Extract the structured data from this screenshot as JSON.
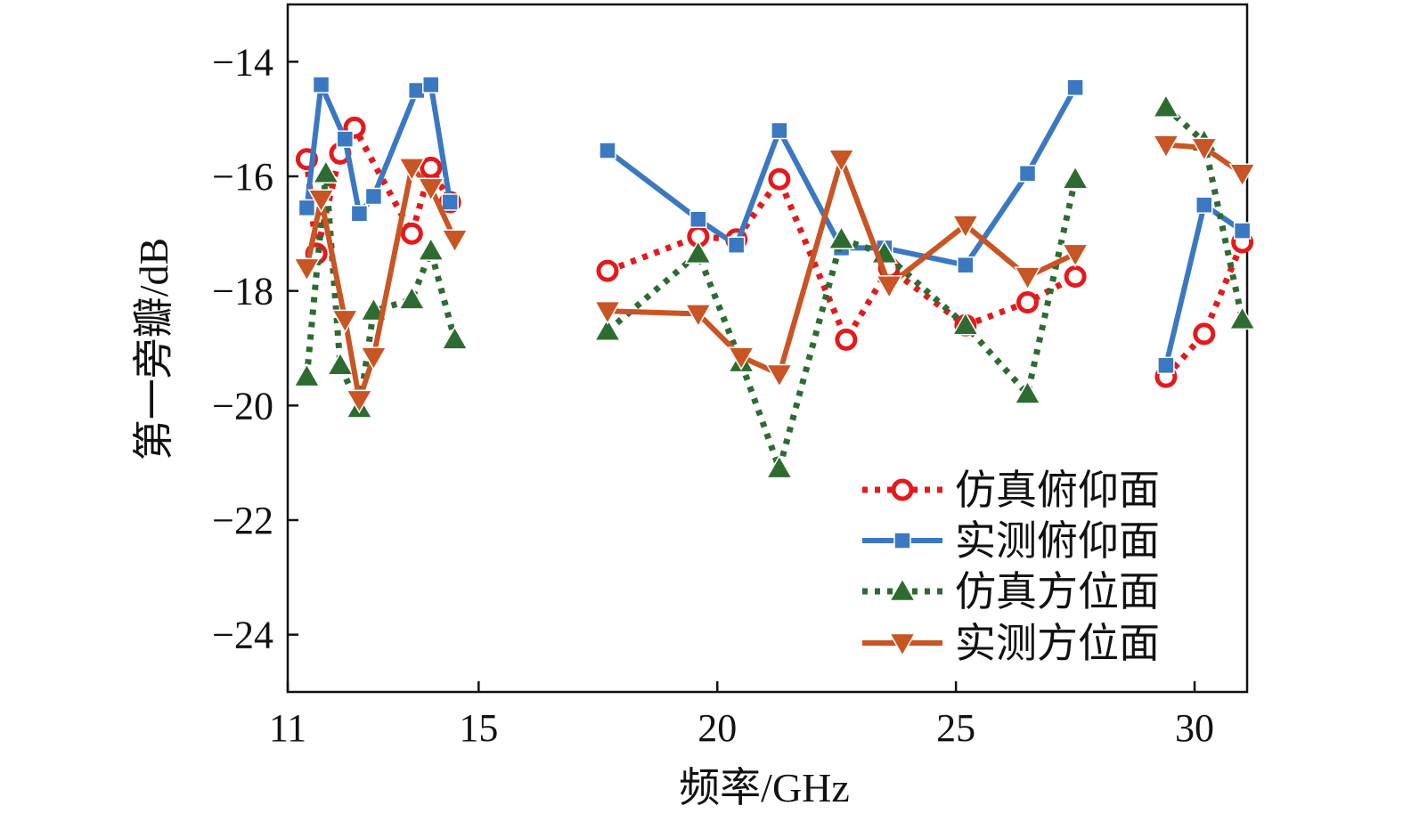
{
  "chart_data": {
    "type": "line",
    "xlabel": "频率/GHz",
    "ylabel": "第一旁瓣/dB",
    "xlim": [
      11,
      31.1
    ],
    "ylim": [
      -25.0,
      -13.0
    ],
    "xticks": [
      11,
      15,
      20,
      25,
      30
    ],
    "yticks": [
      -24,
      -22,
      -20,
      -18,
      -16,
      -14
    ],
    "ytick_labels": [
      "−24",
      "−22",
      "−20",
      "−18",
      "−16",
      "−14"
    ],
    "legend_position": "bottom-right",
    "grid": false,
    "series": [
      {
        "name": "仿真俯仰面",
        "color": "#e31a1c",
        "line_style": "dotted",
        "marker": "circle-open",
        "segments": [
          [
            [
              11.4,
              -15.7
            ],
            [
              11.6,
              -17.35
            ],
            [
              12.1,
              -15.6
            ],
            [
              12.4,
              -15.15
            ],
            [
              13.6,
              -17.0
            ],
            [
              14.0,
              -15.85
            ],
            [
              14.4,
              -16.45
            ]
          ],
          [
            [
              17.7,
              -17.65
            ],
            [
              19.6,
              -17.05
            ],
            [
              20.4,
              -17.1
            ],
            [
              21.3,
              -16.05
            ],
            [
              22.7,
              -18.85
            ],
            [
              23.6,
              -17.6
            ],
            [
              25.2,
              -18.6
            ],
            [
              26.5,
              -18.2
            ],
            [
              27.5,
              -17.75
            ]
          ],
          [
            [
              29.4,
              -19.5
            ],
            [
              30.2,
              -18.75
            ],
            [
              31.0,
              -17.15
            ]
          ]
        ]
      },
      {
        "name": "实测俯仰面",
        "color": "#3b78c2",
        "line_style": "solid",
        "marker": "square",
        "segments": [
          [
            [
              11.4,
              -16.55
            ],
            [
              11.7,
              -14.4
            ],
            [
              12.2,
              -15.35
            ],
            [
              12.5,
              -16.65
            ],
            [
              12.8,
              -16.35
            ],
            [
              13.7,
              -14.5
            ],
            [
              14.0,
              -14.4
            ],
            [
              14.4,
              -16.45
            ]
          ],
          [
            [
              17.7,
              -15.55
            ],
            [
              19.6,
              -16.75
            ],
            [
              20.4,
              -17.2
            ],
            [
              21.3,
              -15.2
            ],
            [
              22.6,
              -17.25
            ],
            [
              23.5,
              -17.25
            ],
            [
              25.2,
              -17.55
            ],
            [
              26.5,
              -15.95
            ],
            [
              27.5,
              -14.45
            ]
          ],
          [
            [
              29.4,
              -19.3
            ],
            [
              30.2,
              -16.5
            ],
            [
              31.0,
              -16.95
            ]
          ]
        ]
      },
      {
        "name": "仿真方位面",
        "color": "#2e6b30",
        "line_style": "dotted",
        "marker": "triangle-up",
        "segments": [
          [
            [
              11.4,
              -19.5
            ],
            [
              11.8,
              -15.95
            ],
            [
              12.1,
              -19.3
            ],
            [
              12.5,
              -20.05
            ],
            [
              12.8,
              -18.35
            ],
            [
              13.6,
              -18.15
            ],
            [
              14.0,
              -17.3
            ],
            [
              14.5,
              -18.85
            ]
          ],
          [
            [
              17.7,
              -18.7
            ],
            [
              19.6,
              -17.35
            ],
            [
              20.5,
              -19.25
            ],
            [
              21.3,
              -21.1
            ],
            [
              22.6,
              -17.1
            ],
            [
              23.5,
              -17.35
            ],
            [
              25.2,
              -18.6
            ],
            [
              26.5,
              -19.8
            ],
            [
              27.5,
              -16.05
            ]
          ],
          [
            [
              29.4,
              -14.8
            ],
            [
              30.2,
              -15.4
            ],
            [
              31.0,
              -18.5
            ]
          ]
        ]
      },
      {
        "name": "实测方位面",
        "color": "#c95424",
        "line_style": "solid",
        "marker": "triangle-down",
        "segments": [
          [
            [
              11.4,
              -17.6
            ],
            [
              11.7,
              -16.4
            ],
            [
              12.2,
              -18.5
            ],
            [
              12.5,
              -19.9
            ],
            [
              12.8,
              -19.15
            ],
            [
              13.6,
              -15.85
            ],
            [
              14.0,
              -16.2
            ],
            [
              14.5,
              -17.1
            ]
          ],
          [
            [
              17.7,
              -18.35
            ],
            [
              19.6,
              -18.4
            ],
            [
              20.5,
              -19.15
            ],
            [
              21.3,
              -19.45
            ],
            [
              22.6,
              -15.7
            ],
            [
              23.6,
              -17.9
            ],
            [
              25.2,
              -16.85
            ],
            [
              26.5,
              -17.75
            ],
            [
              27.5,
              -17.35
            ]
          ],
          [
            [
              29.4,
              -15.45
            ],
            [
              30.2,
              -15.5
            ],
            [
              31.0,
              -15.95
            ]
          ]
        ]
      }
    ]
  }
}
